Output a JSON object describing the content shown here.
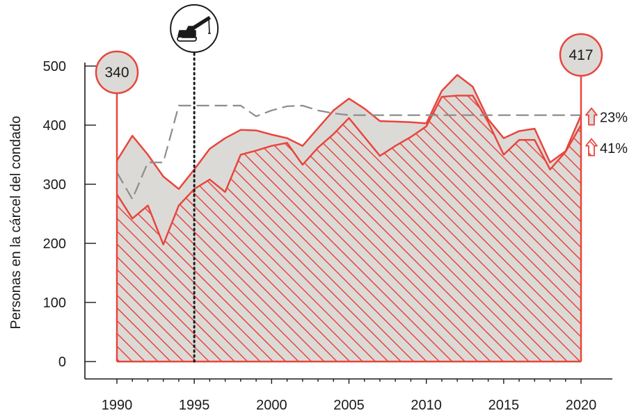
{
  "chart_data": {
    "type": "area",
    "ylabel": "Personas en la cárcel del condado",
    "xlim": [
      1990,
      2020
    ],
    "ylim": [
      0,
      500
    ],
    "y_ticks": [
      0,
      100,
      200,
      300,
      400,
      500
    ],
    "x_ticks": [
      1990,
      1995,
      2000,
      2005,
      2010,
      2015,
      2020
    ],
    "y_tick_labels": [
      "0",
      "100",
      "200",
      "300",
      "400",
      "500"
    ],
    "x_tick_labels": [
      "1990",
      "1995",
      "2000",
      "2005",
      "2010",
      "2015",
      "2020"
    ],
    "grid": false,
    "series": [
      {
        "role": "total-jail-population",
        "style": "gray-fill-red-outline",
        "x": [
          1990,
          1991,
          1992,
          1993,
          1994,
          1995,
          1996,
          1997,
          1998,
          1999,
          2000,
          2001,
          2002,
          2003,
          2004,
          2005,
          2006,
          2007,
          2008,
          2009,
          2010,
          2011,
          2012,
          2013,
          2014,
          2015,
          2016,
          2017,
          2018,
          2019,
          2020
        ],
        "values": [
          340,
          382,
          350,
          313,
          292,
          325,
          360,
          378,
          392,
          391,
          384,
          378,
          365,
          395,
          425,
          445,
          428,
          407,
          406,
          405,
          403,
          458,
          485,
          465,
          410,
          378,
          390,
          394,
          337,
          356,
          417
        ]
      },
      {
        "role": "subset-population",
        "style": "red-hatched",
        "x": [
          1990,
          1991,
          1992,
          1993,
          1994,
          1995,
          1996,
          1997,
          1998,
          1999,
          2000,
          2001,
          2002,
          2003,
          2004,
          2005,
          2006,
          2007,
          2008,
          2009,
          2010,
          2011,
          2012,
          2013,
          2014,
          2015,
          2016,
          2017,
          2018,
          2019,
          2020
        ],
        "values": [
          283,
          242,
          264,
          198,
          264,
          292,
          308,
          287,
          350,
          357,
          365,
          370,
          333,
          362,
          385,
          412,
          380,
          348,
          365,
          380,
          398,
          448,
          450,
          450,
          405,
          350,
          375,
          375,
          325,
          355,
          400
        ]
      },
      {
        "role": "jail-capacity",
        "style": "dashed-gray-line",
        "x": [
          1990,
          1991,
          1992,
          1993,
          1994,
          1995,
          1996,
          1997,
          1998,
          1999,
          2000,
          2001,
          2002,
          2003,
          2004,
          2005,
          2006,
          2007,
          2008,
          2009,
          2010,
          2011,
          2012,
          2013,
          2014,
          2015,
          2016,
          2017,
          2018,
          2019,
          2020
        ],
        "values": [
          320,
          275,
          337,
          337,
          433,
          433,
          433,
          433,
          433,
          415,
          425,
          432,
          433,
          425,
          420,
          417,
          417,
          417,
          417,
          417,
          417,
          417,
          417,
          417,
          417,
          417,
          417,
          417,
          417,
          417,
          417
        ]
      }
    ],
    "event_marker": {
      "year": 1995,
      "icon": "crane-icon"
    },
    "callouts": [
      {
        "id": "start",
        "year": 1990,
        "value_label": "340"
      },
      {
        "id": "end",
        "year": 2020,
        "value_label": "417"
      }
    ],
    "change_labels": [
      {
        "id": "total-change",
        "text": "23%",
        "icon": "up-arrow-icon",
        "anchor_value": 417
      },
      {
        "id": "subset-change",
        "text": "41%",
        "icon": "up-arrow-hatched-icon",
        "anchor_value": 365
      }
    ]
  },
  "colors": {
    "red": "#e8453c",
    "gray_fill": "#dcdad7",
    "dash_gray": "#8c8c8c",
    "axis": "#1a1a1a"
  }
}
